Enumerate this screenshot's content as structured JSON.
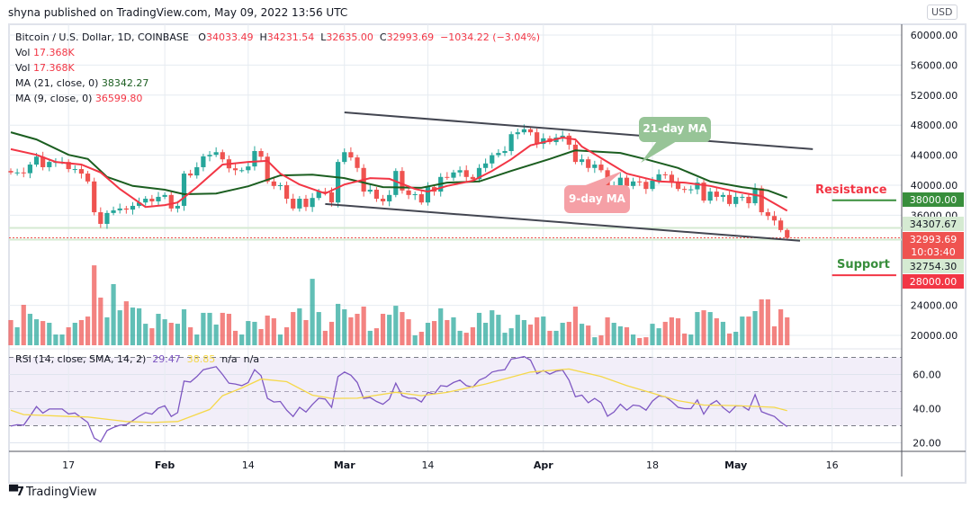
{
  "header": {
    "published": "shyna published on TradingView.com, May 09, 2022 13:56 UTC"
  },
  "legend": {
    "symbol": "Bitcoin / U.S. Dollar, 1D, COINBASE",
    "o_label": "O",
    "o": "34033.49",
    "h_label": "H",
    "h": "34231.54",
    "l_label": "L",
    "l": "32635.00",
    "c_label": "C",
    "c": "32993.69",
    "change": "−1034.22 (−3.04%)",
    "vol1_label": "Vol",
    "vol1": "17.368K",
    "vol2_label": "Vol",
    "vol2": "17.368K",
    "ma21_label": "MA (21, close, 0)",
    "ma21": "38342.27",
    "ma9_label": "MA (9, close, 0)",
    "ma9": "36599.80",
    "rsi_label": "RSI (14, close, SMA, 14, 2)",
    "rsi": "29.47",
    "rsi_sma": "38.85",
    "na1": "n/a",
    "na2": "n/a"
  },
  "currency_button": "USD",
  "price_tags": [
    {
      "value": 38000.0,
      "text": "38000.00",
      "bg": "#388e3c",
      "fg": "#ffffff"
    },
    {
      "value": 34307.67,
      "text": "34307.67",
      "bg": "#d5ead2",
      "fg": "#131722"
    },
    {
      "value": 32993.69,
      "text": "32993.69",
      "sub": "10:03:40",
      "bg": "#ef5350",
      "fg": "#ffffff"
    },
    {
      "value": 32754.3,
      "text": "32754.30",
      "bg": "#d5ead2",
      "fg": "#131722"
    },
    {
      "value": 28000.0,
      "text": "28000.00",
      "bg": "#f23645",
      "fg": "#ffffff"
    }
  ],
  "annotations": {
    "ma21_callout": "21-day MA",
    "ma9_callout": "9-day MA",
    "resistance": "Resistance",
    "support": "Support"
  },
  "footer": {
    "logo_text": "TradingView"
  },
  "colors": {
    "up": "#26a69a",
    "down": "#ef5350",
    "ma21": "#1b5e20",
    "ma9": "#f23645",
    "rsi": "#7e57c2",
    "rsi_sma": "#f5d84a",
    "channel": "#434651",
    "resistance": "#f23645",
    "support": "#388e3c"
  },
  "chart_data": {
    "type": "candlestick",
    "interval": "1D",
    "last_date": "2022-05-09",
    "last_bar": {
      "open": 34033.49,
      "high": 34231.54,
      "low": 32635.0,
      "close": 32993.69
    },
    "price_ylim": [
      18200,
      61440
    ],
    "y_ticks": [
      60000,
      56000,
      52000,
      48000,
      44000,
      40000,
      36000,
      24000,
      20000
    ],
    "x_ticks": [
      {
        "date": "2022-01-17",
        "label": "17",
        "bold": false
      },
      {
        "date": "2022-02-01",
        "label": "Feb",
        "bold": true
      },
      {
        "date": "2022-02-14",
        "label": "14",
        "bold": false
      },
      {
        "date": "2022-03-01",
        "label": "Mar",
        "bold": true
      },
      {
        "date": "2022-03-14",
        "label": "14",
        "bold": false
      },
      {
        "date": "2022-04-01",
        "label": "Apr",
        "bold": true
      },
      {
        "date": "2022-04-18",
        "label": "18",
        "bold": false
      },
      {
        "date": "2022-05-01",
        "label": "May",
        "bold": true
      },
      {
        "date": "2022-05-16",
        "label": "16",
        "bold": false
      }
    ],
    "close": [
      41700,
      41700,
      41600,
      42750,
      43800,
      42400,
      43100,
      43100,
      43100,
      42150,
      42150,
      41550,
      40500,
      36400,
      34850,
      36300,
      36650,
      36900,
      36750,
      37250,
      37700,
      38200,
      37850,
      38450,
      38700,
      36900,
      37250,
      41550,
      41300,
      42400,
      43850,
      44050,
      44400,
      43450,
      42250,
      42000,
      42000,
      42500,
      44550,
      43800,
      40500,
      39900,
      40000,
      38200,
      36900,
      38200,
      37100,
      38300,
      39150,
      39050,
      37700,
      43100,
      44400,
      43700,
      42300,
      39150,
      39400,
      38200,
      37850,
      38700,
      41900,
      39300,
      38700,
      38800,
      37700,
      39750,
      39150,
      41100,
      41000,
      41700,
      42000,
      41100,
      40800,
      42300,
      42900,
      44000,
      44300,
      44550,
      46800,
      47050,
      47450,
      47050,
      45500,
      46250,
      45750,
      46350,
      46600,
      45400,
      43100,
      43450,
      42300,
      42750,
      42000,
      39300,
      40000,
      41000,
      39900,
      40500,
      40450,
      39500,
      40600,
      41450,
      41400,
      40350,
      39500,
      39400,
      39450,
      40350,
      37950,
      39150,
      38450,
      38700,
      37500,
      38450,
      38450,
      37600,
      39600,
      36400,
      35900,
      35300,
      34027.91,
      32993.69
    ],
    "volume_k": [
      15.7,
      11.2,
      25.2,
      19.6,
      16.2,
      15.1,
      14.0,
      6.7,
      6.7,
      11.2,
      14.0,
      15.7,
      17.9,
      49.8,
      29.7,
      17.4,
      38.1,
      21.8,
      27.4,
      23.5,
      23.0,
      13.4,
      10.6,
      19.6,
      16.2,
      14.0,
      13.4,
      22.4,
      11.2,
      6.7,
      20.2,
      20.2,
      12.9,
      20.2,
      19.6,
      9.0,
      6.7,
      15.1,
      14.6,
      10.1,
      18.5,
      16.8,
      6.7,
      11.2,
      20.7,
      23.0,
      15.7,
      41.4,
      20.7,
      9.0,
      14.6,
      25.8,
      22.4,
      17.4,
      19.6,
      24.1,
      9.0,
      10.6,
      19.6,
      19.0,
      24.6,
      20.7,
      16.2,
      6.2,
      8.4,
      14.0,
      15.1,
      23.0,
      15.7,
      17.4,
      9.0,
      7.8,
      11.2,
      20.2,
      14.0,
      21.8,
      19.0,
      7.8,
      10.6,
      19.0,
      15.7,
      12.9,
      17.4,
      17.9,
      9.0,
      9.0,
      14.0,
      14.6,
      24.1,
      13.4,
      12.3,
      5.0,
      6.2,
      17.4,
      14.0,
      11.8,
      11.2,
      6.7,
      4.5,
      5.0,
      13.4,
      10.6,
      14.6,
      17.4,
      16.8,
      7.3,
      6.7,
      20.7,
      21.8,
      20.7,
      16.8,
      14.6,
      7.3,
      8.4,
      17.9,
      17.9,
      21.3,
      28.6,
      28.6,
      11.8,
      22.4,
      17.368
    ],
    "ma21": [
      [
        "2022-01-08",
        47050
      ],
      [
        "2022-01-12",
        46100
      ],
      [
        "2022-01-17",
        44050
      ],
      [
        "2022-01-20",
        43500
      ],
      [
        "2022-01-23",
        41100
      ],
      [
        "2022-01-27",
        39900
      ],
      [
        "2022-02-01",
        39400
      ],
      [
        "2022-02-04",
        38800
      ],
      [
        "2022-02-09",
        38900
      ],
      [
        "2022-02-14",
        39850
      ],
      [
        "2022-02-19",
        41300
      ],
      [
        "2022-02-24",
        41400
      ],
      [
        "2022-03-01",
        40950
      ],
      [
        "2022-03-07",
        39750
      ],
      [
        "2022-03-13",
        39650
      ],
      [
        "2022-03-17",
        40350
      ],
      [
        "2022-03-22",
        40500
      ],
      [
        "2022-03-27",
        41900
      ],
      [
        "2022-04-02",
        43500
      ],
      [
        "2022-04-06",
        44650
      ],
      [
        "2022-04-13",
        44300
      ],
      [
        "2022-04-17",
        43450
      ],
      [
        "2022-04-22",
        42300
      ],
      [
        "2022-04-27",
        40500
      ],
      [
        "2022-05-02",
        39750
      ],
      [
        "2022-05-06",
        39300
      ],
      [
        "2022-05-09",
        38342.27
      ]
    ],
    "ma9": [
      [
        "2022-01-08",
        44800
      ],
      [
        "2022-01-12",
        44050
      ],
      [
        "2022-01-15",
        43100
      ],
      [
        "2022-01-19",
        42750
      ],
      [
        "2022-01-22",
        41700
      ],
      [
        "2022-01-25",
        39500
      ],
      [
        "2022-01-29",
        37100
      ],
      [
        "2022-02-01",
        37350
      ],
      [
        "2022-02-03",
        37700
      ],
      [
        "2022-02-06",
        39750
      ],
      [
        "2022-02-10",
        42750
      ],
      [
        "2022-02-14",
        43100
      ],
      [
        "2022-02-17",
        43250
      ],
      [
        "2022-02-19",
        41550
      ],
      [
        "2022-02-22",
        40100
      ],
      [
        "2022-02-26",
        38900
      ],
      [
        "2022-03-01",
        40100
      ],
      [
        "2022-03-05",
        40950
      ],
      [
        "2022-03-08",
        40850
      ],
      [
        "2022-03-12",
        39500
      ],
      [
        "2022-03-14",
        39150
      ],
      [
        "2022-03-17",
        39900
      ],
      [
        "2022-03-21",
        40600
      ],
      [
        "2022-03-24",
        41900
      ],
      [
        "2022-03-27",
        43450
      ],
      [
        "2022-03-30",
        45300
      ],
      [
        "2022-04-04",
        46350
      ],
      [
        "2022-04-06",
        46100
      ],
      [
        "2022-04-07",
        45150
      ],
      [
        "2022-04-11",
        43100
      ],
      [
        "2022-04-14",
        41550
      ],
      [
        "2022-04-19",
        40500
      ],
      [
        "2022-04-23",
        40350
      ],
      [
        "2022-04-27",
        39900
      ],
      [
        "2022-05-01",
        39150
      ],
      [
        "2022-05-05",
        38550
      ],
      [
        "2022-05-09",
        36599.8
      ]
    ],
    "channel": {
      "upper": [
        [
          "2022-03-01",
          49700
        ],
        [
          "2022-05-13",
          44800
        ]
      ],
      "lower": [
        [
          "2022-02-26",
          37500
        ],
        [
          "2022-05-11",
          32600
        ]
      ]
    },
    "levels": [
      {
        "name": "resistance",
        "value": 38000,
        "from": "2022-05-16",
        "to": "2022-05-26"
      },
      {
        "name": "support",
        "value": 28000,
        "from": "2022-05-16",
        "to": "2022-05-26"
      }
    ],
    "price_lines": [
      {
        "value": 34307.67,
        "style": "solid",
        "color": "#d5ead2"
      },
      {
        "value": 32754.3,
        "style": "solid",
        "color": "#d5ead2"
      },
      {
        "value": 32993.69,
        "style": "dotted",
        "color": "#ef5350"
      }
    ],
    "rsi_ylim": [
      15,
      75
    ],
    "rsi_ticks": [
      60,
      40,
      20
    ],
    "rsi_band": [
      30,
      70
    ],
    "rsi": [
      29.8,
      30.6,
      30.3,
      35.7,
      41.2,
      37.4,
      39.8,
      39.8,
      39.8,
      36.9,
      37.5,
      34.7,
      31.9,
      22.8,
      20.6,
      27.2,
      29.0,
      30.3,
      30.6,
      33.0,
      35.6,
      37.7,
      36.8,
      40.3,
      41.7,
      35.4,
      37.7,
      56.1,
      55.6,
      58.8,
      62.8,
      63.7,
      64.6,
      60.0,
      54.9,
      54.4,
      53.5,
      55.3,
      62.8,
      59.3,
      46.0,
      43.9,
      44.2,
      39.1,
      35.4,
      40.8,
      38.0,
      42.4,
      46.1,
      45.6,
      40.8,
      58.8,
      61.4,
      59.6,
      55.3,
      46.0,
      46.5,
      44.2,
      42.6,
      45.6,
      54.9,
      47.6,
      46.1,
      46.1,
      43.9,
      49.5,
      48.6,
      53.5,
      53.0,
      55.3,
      56.7,
      53.5,
      52.6,
      56.7,
      58.3,
      61.4,
      62.3,
      62.8,
      69.0,
      69.7,
      70.5,
      68.4,
      60.5,
      62.3,
      60.2,
      61.9,
      62.6,
      56.7,
      47.0,
      47.9,
      43.5,
      46.0,
      43.5,
      35.6,
      38.0,
      42.6,
      39.1,
      42.1,
      41.6,
      39.1,
      44.4,
      47.4,
      47.0,
      44.2,
      40.8,
      40.0,
      40.0,
      45.1,
      36.8,
      42.4,
      44.7,
      40.7,
      37.7,
      41.6,
      41.6,
      39.1,
      48.2,
      38.2,
      36.8,
      35.4,
      32.1,
      29.47
    ],
    "rsi_sma": [
      [
        "2022-01-08",
        39.1
      ],
      [
        "2022-01-10",
        36.5
      ],
      [
        "2022-01-17",
        35.4
      ],
      [
        "2022-01-20",
        35.1
      ],
      [
        "2022-01-26",
        32.5
      ],
      [
        "2022-01-30",
        31.9
      ],
      [
        "2022-02-03",
        32.5
      ],
      [
        "2022-02-08",
        39.5
      ],
      [
        "2022-02-10",
        47.6
      ],
      [
        "2022-02-13",
        52.1
      ],
      [
        "2022-02-16",
        57.3
      ],
      [
        "2022-02-20",
        55.8
      ],
      [
        "2022-02-24",
        47.9
      ],
      [
        "2022-02-27",
        46.0
      ],
      [
        "2022-03-03",
        46.1
      ],
      [
        "2022-03-09",
        49.6
      ],
      [
        "2022-03-13",
        47.6
      ],
      [
        "2022-03-17",
        49.5
      ],
      [
        "2022-03-23",
        54.4
      ],
      [
        "2022-03-30",
        61.4
      ],
      [
        "2022-04-05",
        63.2
      ],
      [
        "2022-04-10",
        58.8
      ],
      [
        "2022-04-14",
        53.5
      ],
      [
        "2022-04-18",
        49.1
      ],
      [
        "2022-04-22",
        44.7
      ],
      [
        "2022-04-26",
        42.1
      ],
      [
        "2022-05-01",
        41.8
      ],
      [
        "2022-05-07",
        40.8
      ],
      [
        "2022-05-09",
        38.85
      ]
    ]
  }
}
